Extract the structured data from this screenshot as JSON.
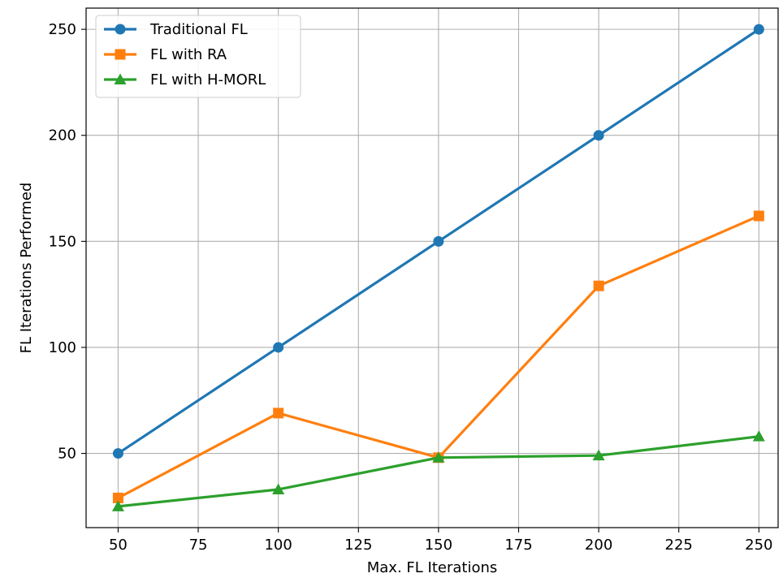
{
  "chart_data": {
    "type": "line",
    "title": "",
    "xlabel": "Max. FL Iterations",
    "ylabel": "FL Iterations Performed",
    "x": [
      50,
      100,
      150,
      200,
      250
    ],
    "xlim": [
      40,
      256
    ],
    "ylim": [
      15,
      260
    ],
    "xticks": [
      50,
      75,
      100,
      125,
      150,
      175,
      200,
      225,
      250
    ],
    "yticks": [
      50,
      100,
      150,
      200,
      250
    ],
    "grid": true,
    "legend_position": "top-left",
    "series": [
      {
        "name": "Traditional FL",
        "values": [
          50,
          100,
          150,
          200,
          250
        ],
        "color": "#1f77b4",
        "marker": "circle"
      },
      {
        "name": "FL with RA",
        "values": [
          29,
          69,
          48,
          129,
          162
        ],
        "color": "#ff7f0e",
        "marker": "square"
      },
      {
        "name": "FL with H-MORL",
        "values": [
          25,
          33,
          48,
          49,
          58
        ],
        "color": "#2ca02c",
        "marker": "triangle"
      }
    ]
  }
}
